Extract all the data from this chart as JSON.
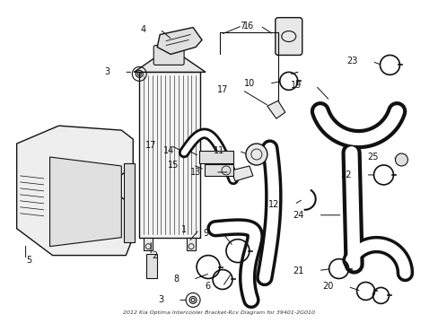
{
  "background_color": "#ffffff",
  "fig_width": 4.89,
  "fig_height": 3.6,
  "dpi": 100,
  "bottom_text": "2012 Kia Optima Intercooler Bracket-Rcv Diagram for 39401-2G010",
  "dark": "#111111",
  "lw_thick": 3.5,
  "lw_med": 1.5,
  "lw_thin": 0.8
}
